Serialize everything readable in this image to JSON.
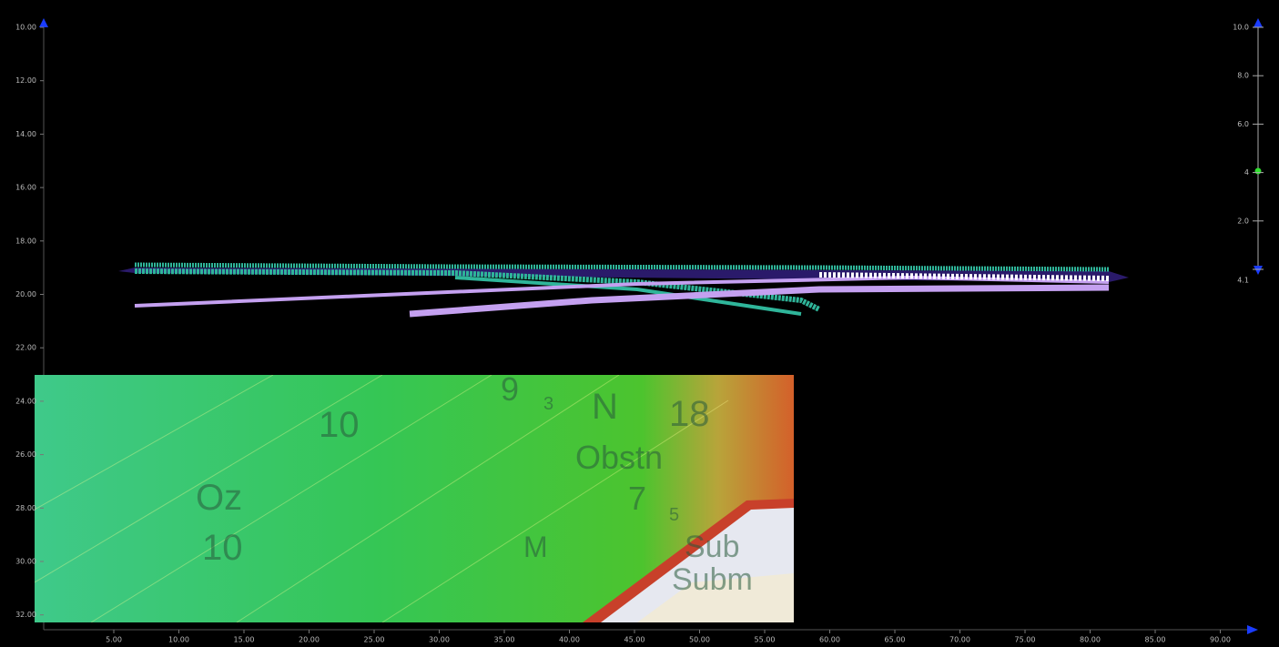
{
  "viewer": {
    "depth_labels": [
      "10.00",
      "12.00",
      "14.00",
      "16.00",
      "18.00",
      "20.00",
      "22.00",
      "24.00",
      "26.00",
      "28.00",
      "30.00",
      "32.00"
    ],
    "distance_labels": [
      "5.00",
      "10.00",
      "15.00",
      "20.00",
      "25.00",
      "30.00",
      "35.00",
      "40.00",
      "45.00",
      "50.00",
      "55.00",
      "60.00",
      "65.00",
      "70.00",
      "75.00",
      "80.00",
      "85.00",
      "90.00"
    ],
    "scale_labels": [
      "10.0",
      "8.0",
      "6.0",
      "4",
      "2.0",
      "4.1"
    ],
    "map_labels": [
      "9",
      "3",
      "N",
      "18",
      "10",
      "Oz",
      "10",
      "Obstn",
      "7",
      "5",
      "M",
      "Sub",
      "Subm"
    ]
  }
}
